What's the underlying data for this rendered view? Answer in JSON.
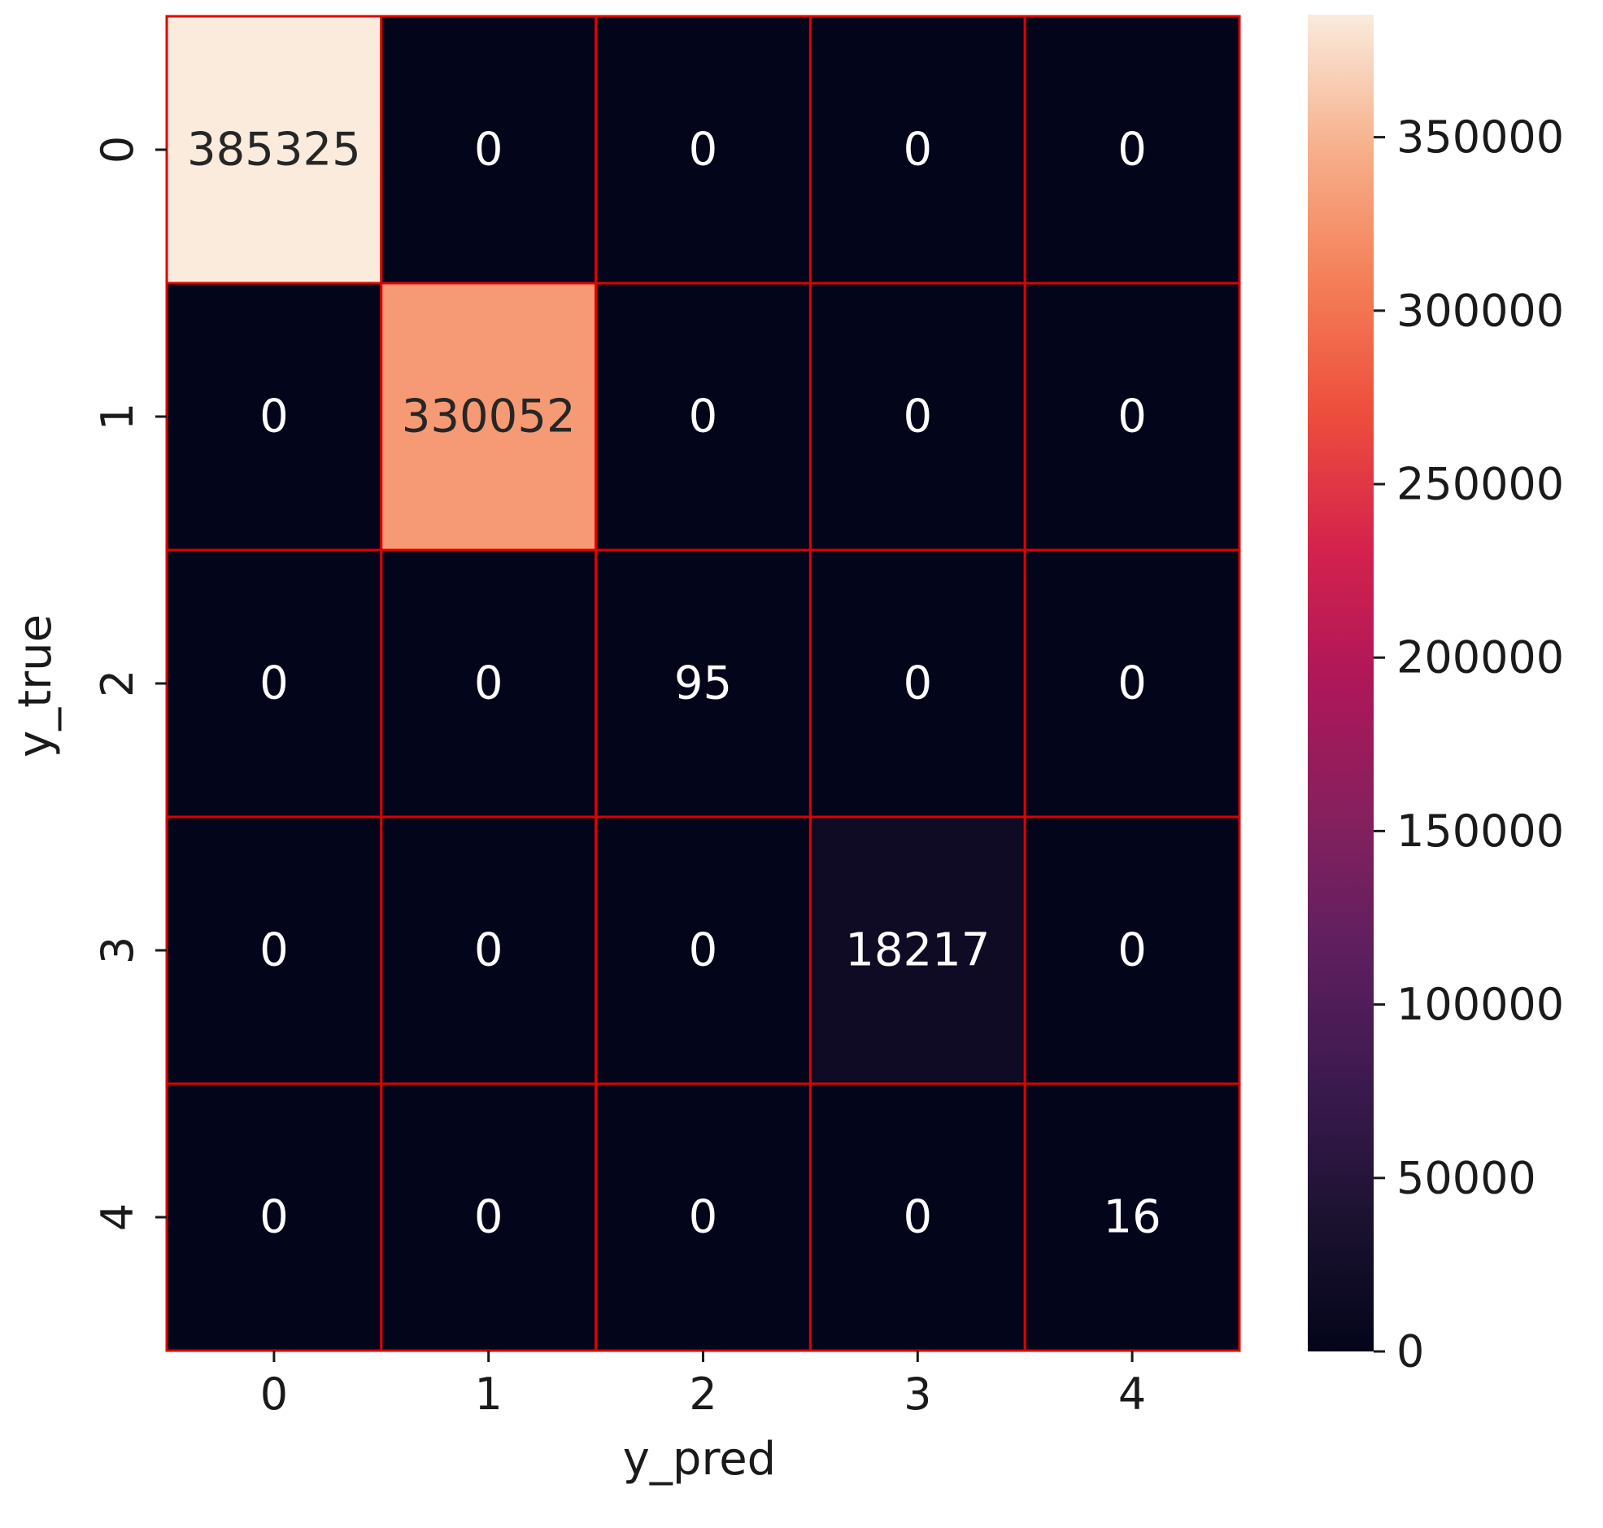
{
  "chart_data": {
    "type": "heatmap",
    "title": "",
    "xlabel": "y_pred",
    "ylabel": "y_true",
    "x_categories": [
      "0",
      "1",
      "2",
      "3",
      "4"
    ],
    "y_categories": [
      "0",
      "1",
      "2",
      "3",
      "4"
    ],
    "values": [
      [
        385325,
        0,
        0,
        0,
        0
      ],
      [
        0,
        330052,
        0,
        0,
        0
      ],
      [
        0,
        0,
        95,
        0,
        0
      ],
      [
        0,
        0,
        0,
        18217,
        0
      ],
      [
        0,
        0,
        0,
        0,
        16
      ]
    ],
    "colorbar": {
      "colormap": "rocket",
      "vmin": 0,
      "vmax": 385325,
      "ticks": [
        0,
        50000,
        100000,
        150000,
        200000,
        250000,
        300000,
        350000
      ]
    },
    "cell_border_color": "#e00000"
  }
}
